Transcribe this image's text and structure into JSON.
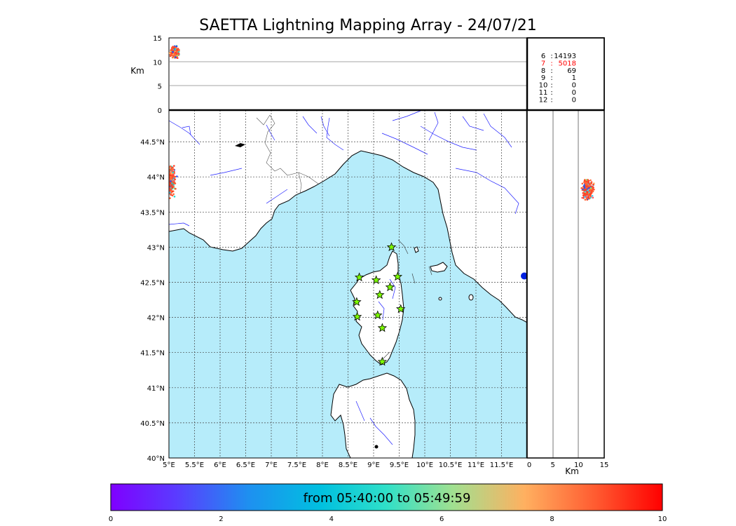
{
  "title": "SAETTA Lightning Mapping Array - 24/07/21",
  "top_panel": {
    "ylabel": "Km",
    "yticks": [
      "15",
      "10",
      "5",
      "0"
    ],
    "yrange": [
      0,
      15
    ]
  },
  "map": {
    "lon_range": [
      5.0,
      12.0
    ],
    "lat_range": [
      40.0,
      44.95
    ],
    "lon_ticks": [
      "5°E",
      "5.5°E",
      "6°E",
      "6.5°E",
      "7°E",
      "7.5°E",
      "8°E",
      "8.5°E",
      "9°E",
      "9.5°E",
      "10°E",
      "10.5°E",
      "11°E",
      "11.5°E"
    ],
    "lon_values": [
      5,
      5.5,
      6,
      6.5,
      7,
      7.5,
      8,
      8.5,
      9,
      9.5,
      10,
      10.5,
      11,
      11.5
    ],
    "lat_ticks": [
      "40°N",
      "40.5°N",
      "41°N",
      "41.5°N",
      "42°N",
      "42.5°N",
      "43°N",
      "43.5°N",
      "44°N",
      "44.5°N"
    ],
    "lat_values": [
      40,
      40.5,
      41,
      41.5,
      42,
      42.5,
      43,
      43.5,
      44,
      44.5
    ],
    "sea_color": "#b6ecfa",
    "land_color": "#ffffff",
    "station_markers": [
      {
        "lon": 9.35,
        "lat": 43.0
      },
      {
        "lon": 8.72,
        "lat": 42.57
      },
      {
        "lon": 9.05,
        "lat": 42.53
      },
      {
        "lon": 9.47,
        "lat": 42.58
      },
      {
        "lon": 9.12,
        "lat": 42.32
      },
      {
        "lon": 9.32,
        "lat": 42.43
      },
      {
        "lon": 8.67,
        "lat": 42.22
      },
      {
        "lon": 9.53,
        "lat": 42.12
      },
      {
        "lon": 8.68,
        "lat": 42.01
      },
      {
        "lon": 9.08,
        "lat": 42.03
      },
      {
        "lon": 9.17,
        "lat": 41.85
      },
      {
        "lon": 9.17,
        "lat": 41.37
      }
    ],
    "station_marker_color": "#7cfc00",
    "offmap_point": {
      "lon": 12.0,
      "lat": 42.59
    }
  },
  "side_panel": {
    "xlabel": "Km",
    "xticks": [
      "0",
      "5",
      "10",
      "15"
    ],
    "xrange": [
      0,
      15
    ]
  },
  "station_counts": [
    {
      "label": "6",
      "count": "14193",
      "color": "#000000"
    },
    {
      "label": "7",
      "count": "5018",
      "color": "#ff0000"
    },
    {
      "label": "8",
      "count": "69",
      "color": "#000000"
    },
    {
      "label": "9",
      "count": "1",
      "color": "#000000"
    },
    {
      "label": "10",
      "count": "0",
      "color": "#000000"
    },
    {
      "label": "11",
      "count": "0",
      "color": "#000000"
    },
    {
      "label": "12",
      "count": "0",
      "color": "#000000"
    }
  ],
  "lightning_clusters": {
    "top": {
      "lon_center": 5.12,
      "lon_spread": 0.12,
      "alt_center": 12.0,
      "alt_spread": 1.6,
      "count": 260
    },
    "left": {
      "lat_center": 43.95,
      "lat_spread": 0.28,
      "count": 300
    },
    "side": {
      "lat_center": 43.82,
      "lat_spread": 0.18,
      "alt_center": 11.8,
      "alt_spread": 1.4,
      "count": 320
    }
  },
  "colorbar": {
    "label": "from 05:40:00 to 05:49:59",
    "ticks": [
      "0",
      "2",
      "4",
      "6",
      "8",
      "10"
    ],
    "range": [
      0,
      10
    ]
  }
}
